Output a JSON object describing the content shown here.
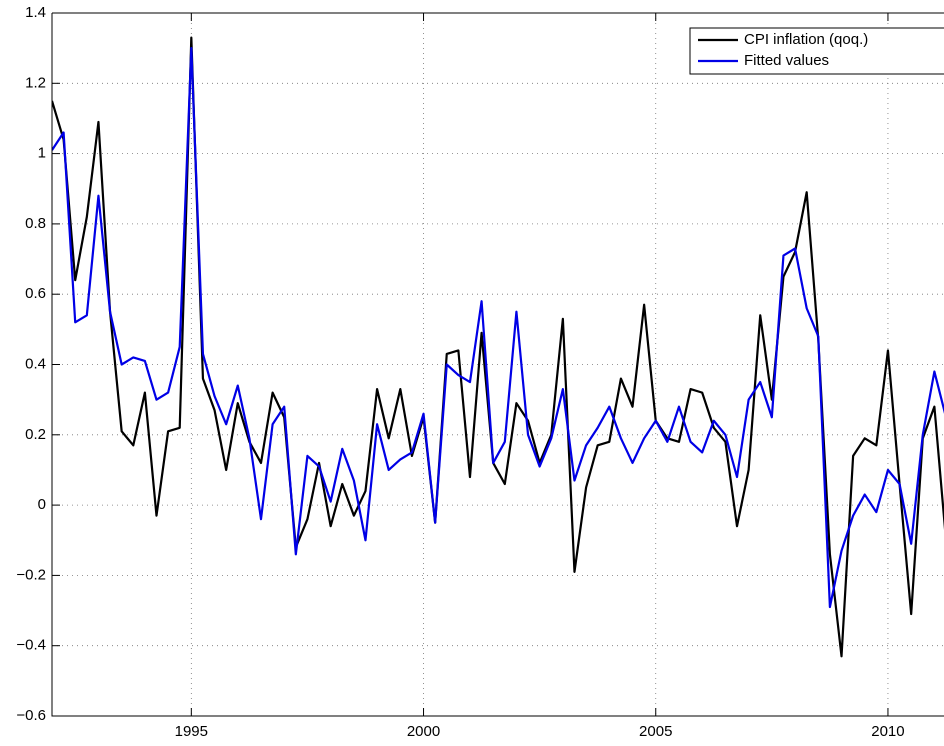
{
  "chart_data": {
    "type": "line",
    "x": [
      1992,
      1992.25,
      1992.5,
      1992.75,
      1993,
      1993.25,
      1993.5,
      1993.75,
      1994,
      1994.25,
      1994.5,
      1994.75,
      1995,
      1995.25,
      1995.5,
      1995.75,
      1996,
      1996.25,
      1996.5,
      1996.75,
      1997,
      1997.25,
      1997.5,
      1997.75,
      1998,
      1998.25,
      1998.5,
      1998.75,
      1999,
      1999.25,
      1999.5,
      1999.75,
      2000,
      2000.25,
      2000.5,
      2000.75,
      2001,
      2001.25,
      2001.5,
      2001.75,
      2002,
      2002.25,
      2002.5,
      2002.75,
      2003,
      2003.25,
      2003.5,
      2003.75,
      2004,
      2004.25,
      2004.5,
      2004.75,
      2005,
      2005.25,
      2005.5,
      2005.75,
      2006,
      2006.25,
      2006.5,
      2006.75,
      2007,
      2007.25,
      2007.5,
      2007.75,
      2008,
      2008.25,
      2008.5,
      2008.75,
      2009,
      2009.25,
      2009.5,
      2009.75,
      2010,
      2010.25,
      2010.5,
      2010.75,
      2011,
      2011.25
    ],
    "series": [
      {
        "name": "CPI inflation (qoq.)",
        "color": "#000000",
        "values": [
          1.15,
          1.04,
          0.64,
          0.82,
          1.09,
          0.55,
          0.21,
          0.17,
          0.32,
          -0.03,
          0.21,
          0.22,
          1.33,
          0.36,
          0.27,
          0.1,
          0.29,
          0.18,
          0.12,
          0.32,
          0.25,
          -0.12,
          -0.04,
          0.12,
          -0.06,
          0.06,
          -0.03,
          0.04,
          0.33,
          0.19,
          0.33,
          0.14,
          0.25,
          -0.05,
          0.43,
          0.44,
          0.08,
          0.49,
          0.12,
          0.06,
          0.29,
          0.24,
          0.12,
          0.2,
          0.53,
          -0.19,
          0.05,
          0.17,
          0.18,
          0.36,
          0.28,
          0.57,
          0.24,
          0.19,
          0.18,
          0.33,
          0.32,
          0.22,
          0.18,
          -0.06,
          0.1,
          0.54,
          0.3,
          0.65,
          0.72,
          0.89,
          0.47,
          -0.14,
          -0.43,
          0.14,
          0.19,
          0.17,
          0.44,
          0.06,
          -0.31,
          0.19,
          0.28,
          -0.1
        ]
      },
      {
        "name": "Fitted values",
        "color": "#0000e6",
        "values": [
          1.01,
          1.06,
          0.52,
          0.54,
          0.88,
          0.55,
          0.4,
          0.42,
          0.41,
          0.3,
          0.32,
          0.45,
          1.3,
          0.43,
          0.31,
          0.23,
          0.34,
          0.19,
          -0.04,
          0.23,
          0.28,
          -0.14,
          0.14,
          0.11,
          0.01,
          0.16,
          0.07,
          -0.1,
          0.23,
          0.1,
          0.13,
          0.15,
          0.26,
          -0.05,
          0.4,
          0.37,
          0.35,
          0.58,
          0.12,
          0.18,
          0.55,
          0.2,
          0.11,
          0.19,
          0.33,
          0.07,
          0.17,
          0.22,
          0.28,
          0.19,
          0.12,
          0.19,
          0.24,
          0.18,
          0.28,
          0.18,
          0.15,
          0.24,
          0.2,
          0.08,
          0.3,
          0.35,
          0.25,
          0.71,
          0.73,
          0.56,
          0.48,
          -0.29,
          -0.13,
          -0.03,
          0.03,
          -0.02,
          0.1,
          0.06,
          -0.11,
          0.2,
          0.38,
          0.25
        ]
      }
    ],
    "xlim": [
      1992,
      2011.25
    ],
    "xticks": [
      1995,
      2000,
      2005,
      2010
    ],
    "ylim": [
      -0.6,
      1.4
    ],
    "yticks": [
      {
        "value": -0.6,
        "label": "−0.6"
      },
      {
        "value": -0.4,
        "label": "−0.4"
      },
      {
        "value": -0.2,
        "label": "−0.2"
      },
      0,
      0.2,
      0.4,
      0.6,
      0.8,
      1,
      1.2,
      1.4
    ],
    "grid": true,
    "legend": "northeast"
  }
}
